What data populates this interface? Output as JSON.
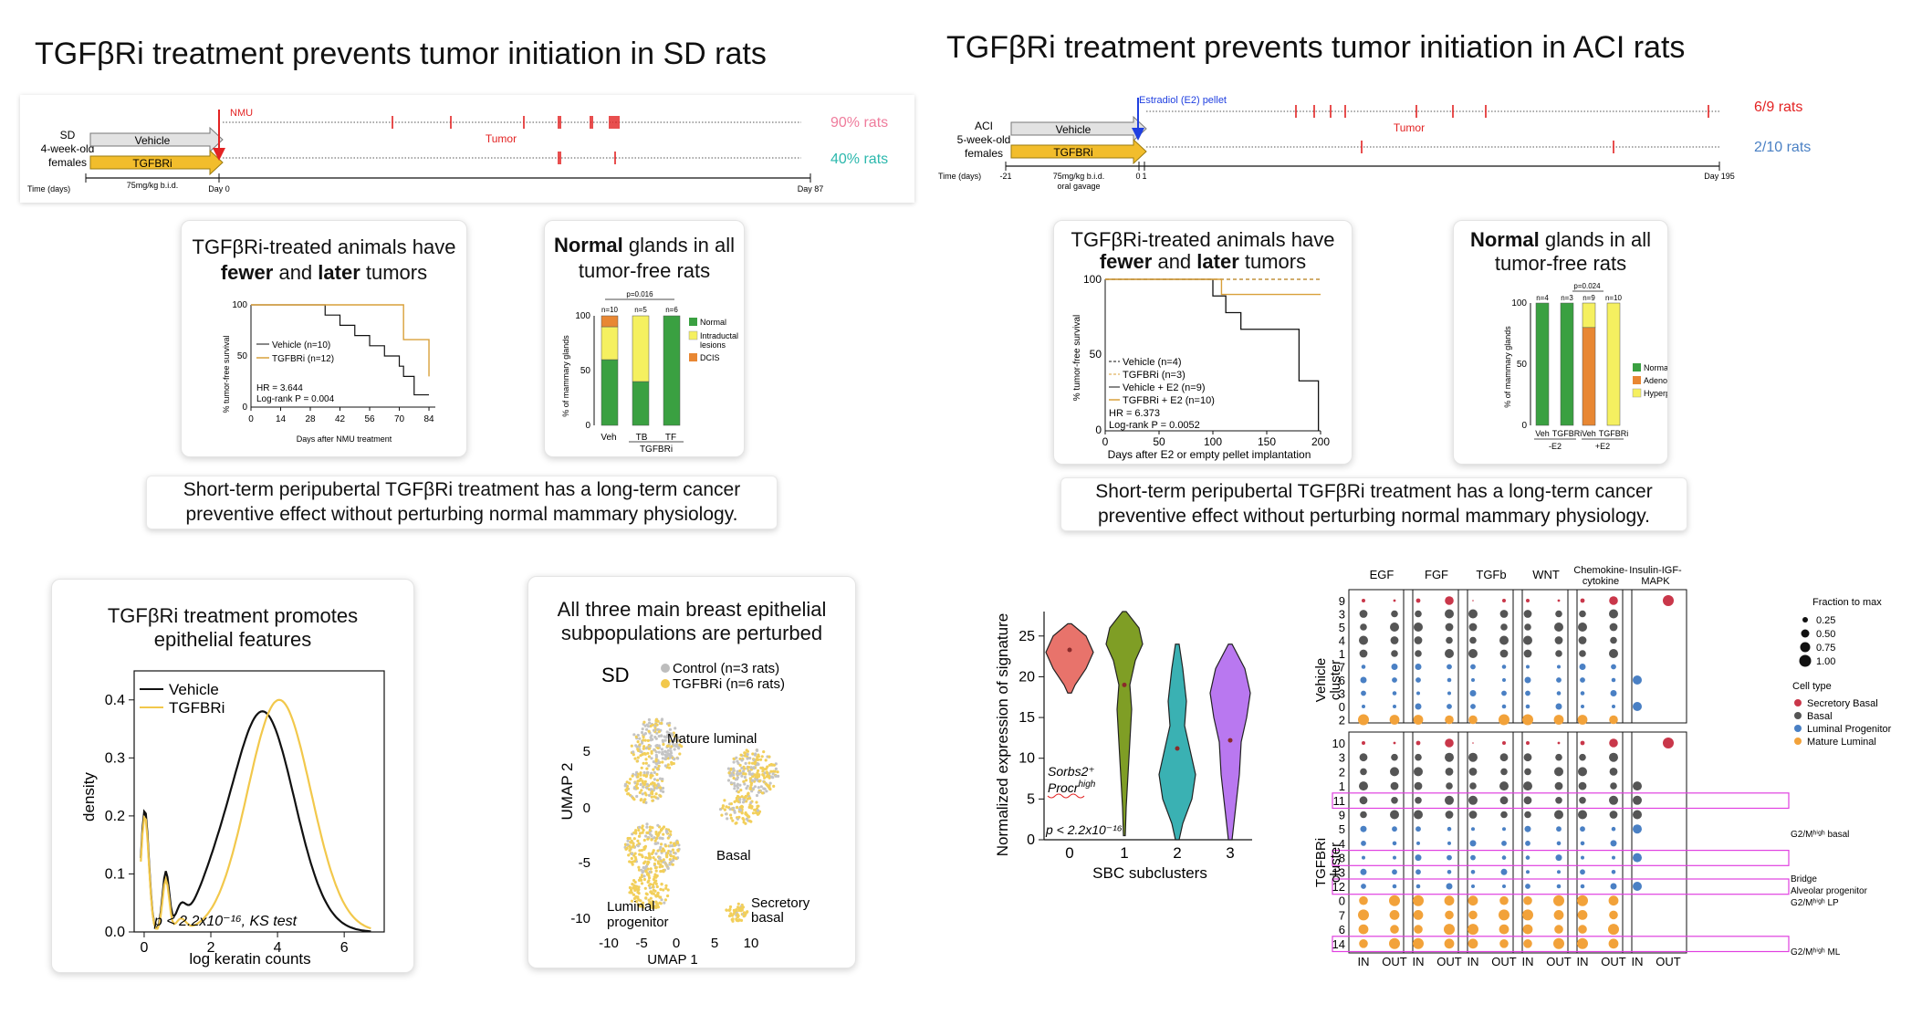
{
  "sd": {
    "title": "TGFβRi treatment prevents tumor initiation in SD rats",
    "timeline": {
      "strain": "SD",
      "age": "4-week-old",
      "sex": "females",
      "vehicle_label": "Vehicle",
      "treatment_label": "TGFBRi",
      "treatment_marker": "NMU",
      "tumor_label": "Tumor",
      "time_label": "Time (days)",
      "dose": "75mg/kg b.i.d.",
      "start_day": "Day 0",
      "end_day": "Day 87",
      "vehicle_pct": "90% rats",
      "tgfbri_pct": "40% rats"
    },
    "km_card": {
      "line1": "TGFβRi-treated animals have",
      "line2_a": "fewer",
      "line2_b": " and ",
      "line2_c": "later",
      "line2_d": " tumors",
      "ylabel": "% tumor-free survival",
      "xlabel": "Days after NMU treatment",
      "yticks": [
        "0",
        "50",
        "100"
      ],
      "xticks": [
        "0",
        "14",
        "28",
        "42",
        "56",
        "70",
        "84"
      ],
      "legend_vehicle": "Vehicle (n=10)",
      "legend_tgfbri": "TGFBRi (n=12)",
      "hr": "HR = 3.644",
      "pval": "Log-rank P = 0.004"
    },
    "glands_card": {
      "line1_a": "Normal",
      "line1_b": " glands in all",
      "line2": "tumor-free rats",
      "ylabel": "% of mammary glands",
      "pval": "p=0.016",
      "ns": [
        "n=10",
        "n=5",
        "n=6"
      ],
      "cats": [
        "Veh",
        "TB",
        "TF"
      ],
      "group": "TGFBRi",
      "yticks": [
        "0",
        "50",
        "100"
      ],
      "legend": [
        "Normal",
        "Intraductal lesions",
        "DCIS"
      ]
    },
    "summary_line1": "Short-term peripubertal TGFβRi treatment has a long-term cancer",
    "summary_line2": "preventive effect without perturbing normal mammary physiology."
  },
  "aci": {
    "title": "TGFβRi treatment prevents tumor initiation in ACI rats",
    "timeline": {
      "strain": "ACI",
      "age": "5-week-old",
      "sex": "females",
      "vehicle_label": "Vehicle",
      "treatment_label": "TGFBRi",
      "pellet": "Estradiol  (E2) pellet",
      "tumor_label": "Tumor",
      "time_label": "Time (days)",
      "t_start": "-21",
      "t_zero": "0",
      "t_one": "1",
      "dose1": "75mg/kg b.i.d.",
      "dose2": "oral gavage",
      "end_day": "Day 195",
      "vehicle_frac": "6/9 rats",
      "tgfbri_frac": "2/10 rats"
    },
    "km_card": {
      "line1": "TGFβRi-treated animals have",
      "line2_a": "fewer",
      "line2_b": " and ",
      "line2_c": "later",
      "line2_d": " tumors",
      "ylabel": "% tumor-free survival",
      "xlabel": "Days after E2 or empty pellet implantation",
      "yticks": [
        "0",
        "50",
        "100"
      ],
      "xticks": [
        "0",
        "50",
        "100",
        "150",
        "200"
      ],
      "legend": [
        "Vehicle (n=4)",
        "TGFBRi (n=3)",
        "Vehicle + E2 (n=9)",
        "TGFBRi + E2 (n=10)"
      ],
      "hr": "HR = 6.373",
      "pval": "Log-rank P = 0.0052"
    },
    "glands_card": {
      "line1_a": "Normal",
      "line1_b": " glands in all",
      "line2": "tumor-free rats",
      "ylabel": "% of mammary glands",
      "pval": "p=0.024",
      "ns": [
        "n=4",
        "n=3",
        "n=9",
        "n=10"
      ],
      "cats": [
        "Veh",
        "TGFBRi",
        "Veh",
        "TGFBRi"
      ],
      "groups": [
        "-E2",
        "+E2"
      ],
      "yticks": [
        "0",
        "50",
        "100"
      ],
      "legend": [
        "Normal",
        "Adenoma",
        "Hyperplasia"
      ]
    },
    "summary_line1": "Short-term peripubertal TGFβRi treatment has a long-term cancer",
    "summary_line2": "preventive effect without perturbing normal mammary physiology."
  },
  "density_card": {
    "line1": "TGFβRi treatment promotes",
    "line2": "epithelial features",
    "ylabel": "density",
    "xlabel": "log keratin counts",
    "legend_vehicle": "Vehicle",
    "legend_tgfbri": "TGFBRi",
    "pval": "p < 2.2x10⁻¹⁶, KS test",
    "yticks": [
      "0.0",
      "0.1",
      "0.2",
      "0.3",
      "0.4"
    ],
    "xticks": [
      "0",
      "2",
      "4",
      "6"
    ]
  },
  "umap_card": {
    "line1": "All three main breast epithelial",
    "line2": "subpopulations are perturbed",
    "tag": "SD",
    "legend_control": "Control (n=3 rats)",
    "legend_tgfbri": "TGFBRi (n=6 rats)",
    "ylabel": "UMAP 2",
    "xlabel": "UMAP 1",
    "yticks": [
      "5",
      "0",
      "-5",
      "-10"
    ],
    "xticks": [
      "-10",
      "-5",
      "0",
      "5",
      "10"
    ],
    "labels": [
      "Mature luminal",
      "Basal",
      "Luminal",
      "progenitor",
      "Secretory",
      "basal"
    ]
  },
  "violin": {
    "ylabel": "Normalized expression of signature",
    "xlabel": "SBC subclusters",
    "yticks": [
      "0",
      "5",
      "10",
      "15",
      "20",
      "25"
    ],
    "xticks": [
      "0",
      "1",
      "2",
      "3"
    ],
    "gene1": "Sorbs2⁺",
    "gene2": "Procr",
    "gene2_sup": "high",
    "pval": "p < 2.2x10⁻¹⁶",
    "colors": [
      "#e8736b",
      "#7f9e25",
      "#3ab1b3",
      "#b978f0"
    ]
  },
  "dotplot": {
    "pathways": [
      "EGF",
      "FGF",
      "TGFb",
      "WNT",
      "Chemokine-cytokine",
      "Insulin-IGF-MAPK"
    ],
    "pathway_lines": [
      [
        "EGF"
      ],
      [
        "FGF"
      ],
      [
        "TGFb"
      ],
      [
        "WNT"
      ],
      [
        "Chemokine-",
        "cytokine"
      ],
      [
        "Insulin-IGF-",
        "MAPK"
      ]
    ],
    "vehicle_label": "Vehicle",
    "tgfbri_label": "TGFBRi",
    "cluster_label": "cluster",
    "vehicle_clusters": [
      "9",
      "3",
      "5",
      "4",
      "1",
      "7",
      "6",
      "3",
      "0",
      "2"
    ],
    "tgfbri_clusters": [
      "10",
      "3",
      "2",
      "1",
      "11",
      "9",
      "5",
      "4",
      "8",
      "13",
      "12",
      "0",
      "7",
      "6",
      "14"
    ],
    "in_label": "IN",
    "out_label": "OUT",
    "size_title": "Fraction to max",
    "size_values": [
      "0.25",
      "0.50",
      "0.75",
      "1.00"
    ],
    "celltype_title": "Cell type",
    "celltypes": [
      "Secretory Basal",
      "Basal",
      "Luminal Progenitor",
      "Mature Luminal"
    ],
    "colors": [
      "#c9374a",
      "#555555",
      "#4a80c4",
      "#f2a23a"
    ],
    "annotations": [
      "G2/Mʰⁱᵍʰ basal",
      "Bridge",
      "Alveolar progenitor",
      "G2/Mʰⁱᵍʰ LP",
      "G2/Mʰⁱᵍʰ ML"
    ]
  }
}
